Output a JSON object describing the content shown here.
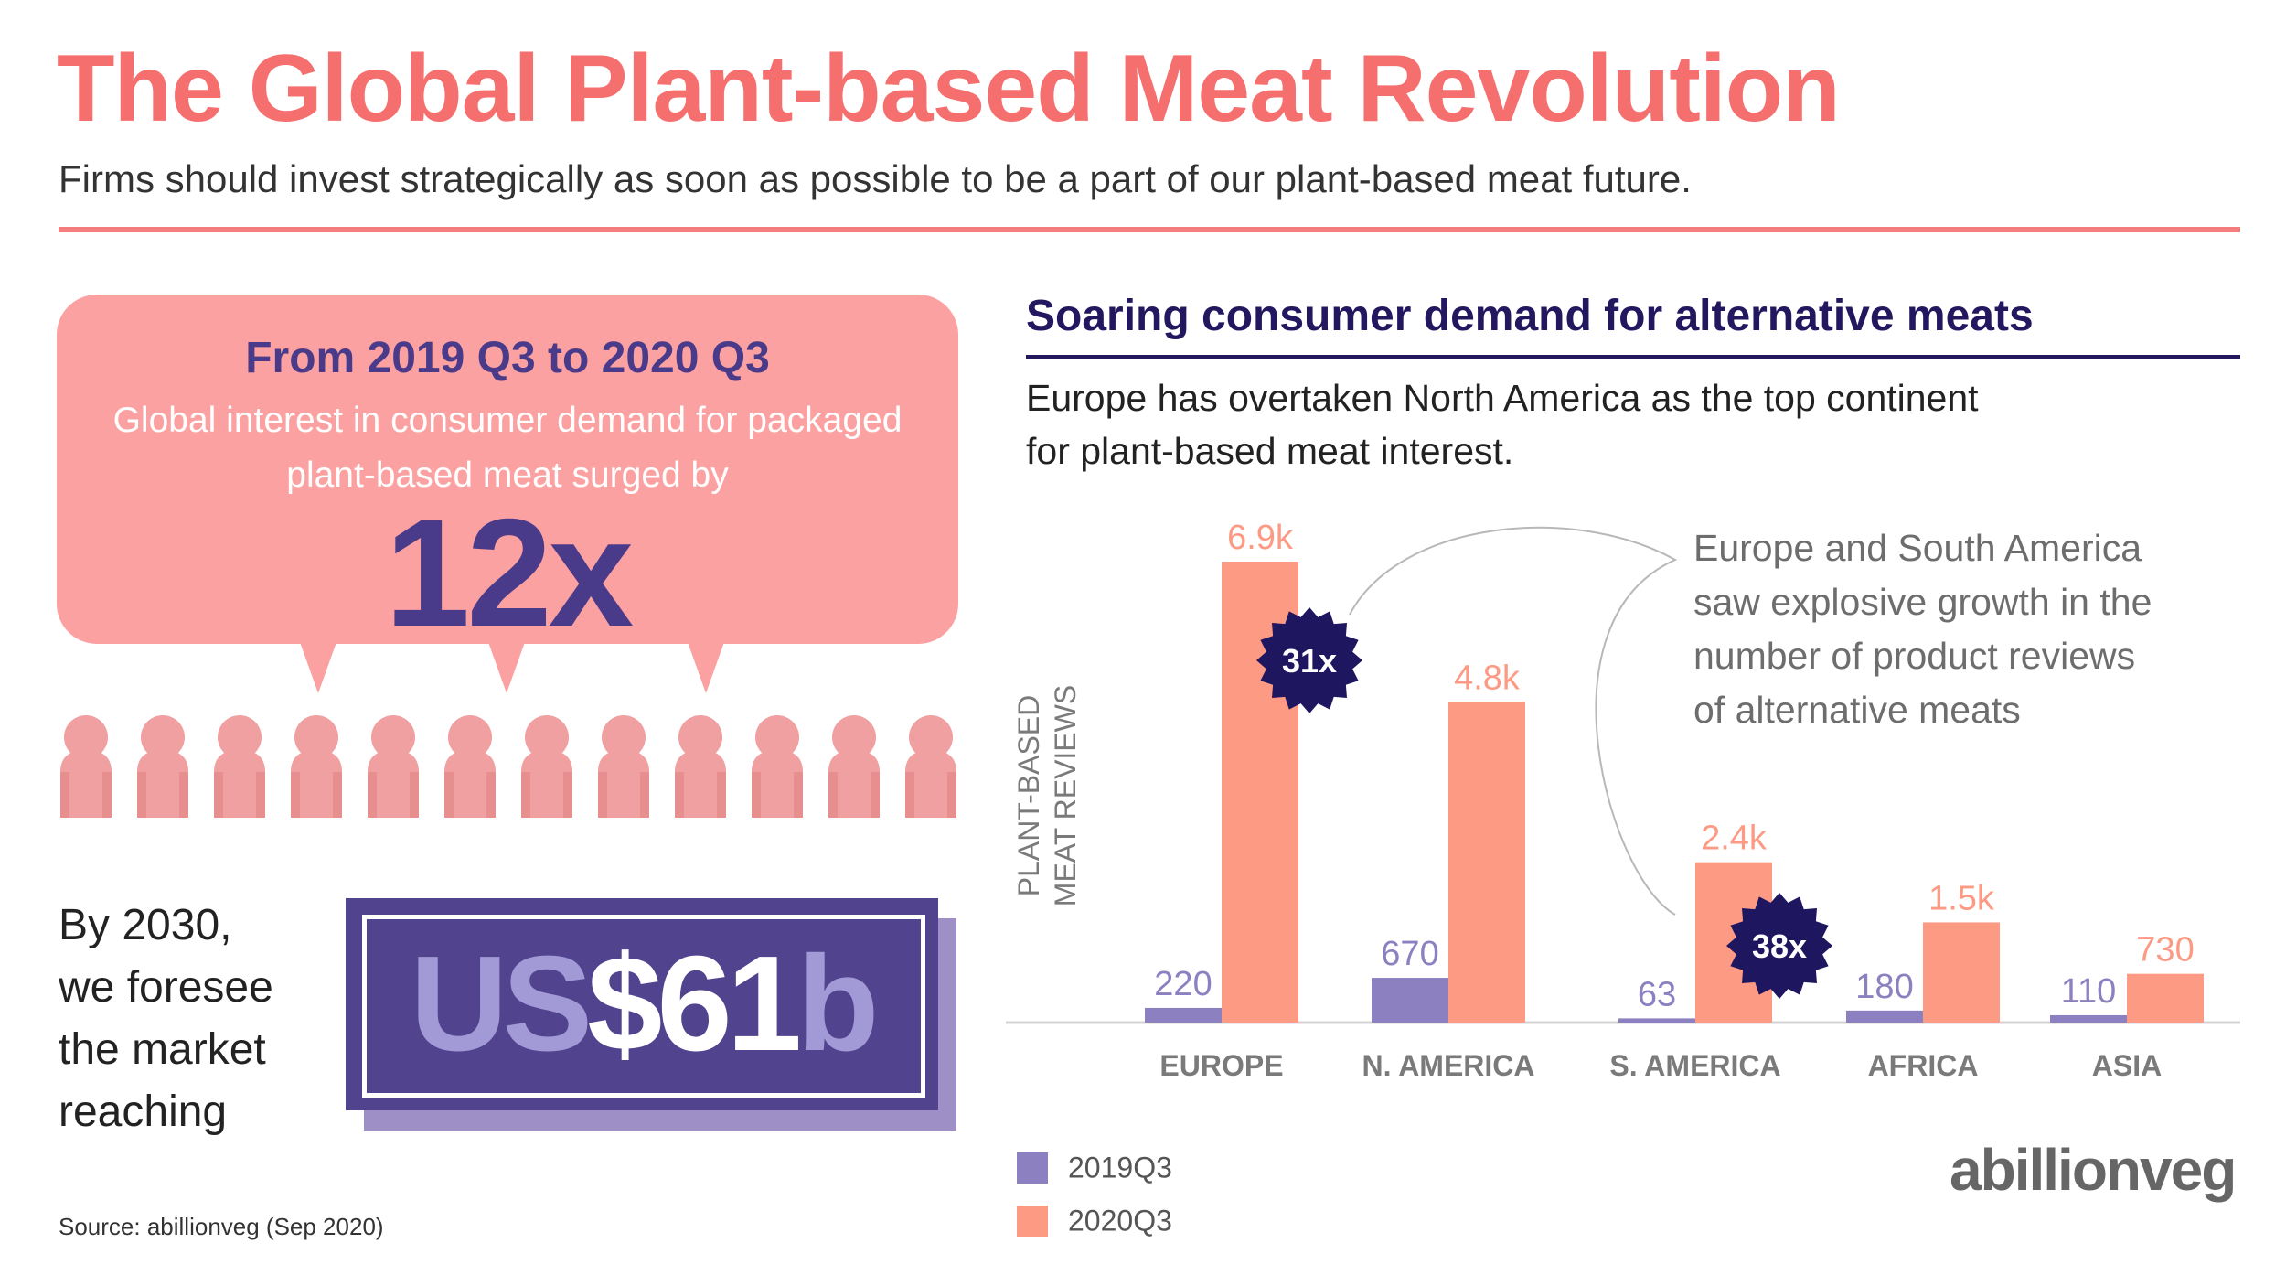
{
  "header": {
    "title": "The Global Plant-based Meat Revolution",
    "subtitle": "Firms should invest strategically as soon as possible to be a part of our plant-based meat future."
  },
  "bubble": {
    "heading": "From 2019 Q3 to 2020 Q3",
    "text": "Global interest in consumer demand for packaged plant-based meat surged by",
    "big": "12x"
  },
  "forecast": {
    "text_lines": [
      "By 2030,",
      "we foresee",
      "the market",
      "reaching"
    ],
    "value_prefix": "US",
    "value_main": "$61",
    "value_suffix": "b"
  },
  "source": "Source: abillionveg (Sep 2020)",
  "section": {
    "title": "Soaring consumer demand for alternative meats",
    "text_lines": [
      "Europe has overtaken North America as the top continent",
      "for plant-based meat interest."
    ],
    "note_lines": [
      "Europe and South America",
      "saw explosive growth in the",
      "number of product reviews",
      "of alternative meats"
    ]
  },
  "chart_data": {
    "type": "bar",
    "ylabel": "PLANT-BASED MEAT REVIEWS",
    "categories": [
      "EUROPE",
      "N. AMERICA",
      "S. AMERICA",
      "AFRICA",
      "ASIA"
    ],
    "series": [
      {
        "name": "2019Q3",
        "color": "#8c80c1",
        "values": [
          220,
          670,
          63,
          180,
          110
        ],
        "labels": [
          "220",
          "670",
          "63",
          "180",
          "110"
        ]
      },
      {
        "name": "2020Q3",
        "color": "#fc9a84",
        "values": [
          6900,
          4800,
          2400,
          1500,
          730
        ],
        "labels": [
          "6.9k",
          "4.8k",
          "2.4k",
          "1.5k",
          "730"
        ]
      }
    ],
    "ylim": [
      0,
      6900
    ],
    "annotations": [
      {
        "text": "31x",
        "category": "EUROPE"
      },
      {
        "text": "38x",
        "category": "S. AMERICA"
      }
    ]
  },
  "colors": {
    "title": "#f66f6f",
    "navy": "#23175f",
    "purple": "#4a3b8a",
    "bubble": "#fca1a1",
    "person": "#f0a0a0"
  },
  "logo": "abillionveg"
}
